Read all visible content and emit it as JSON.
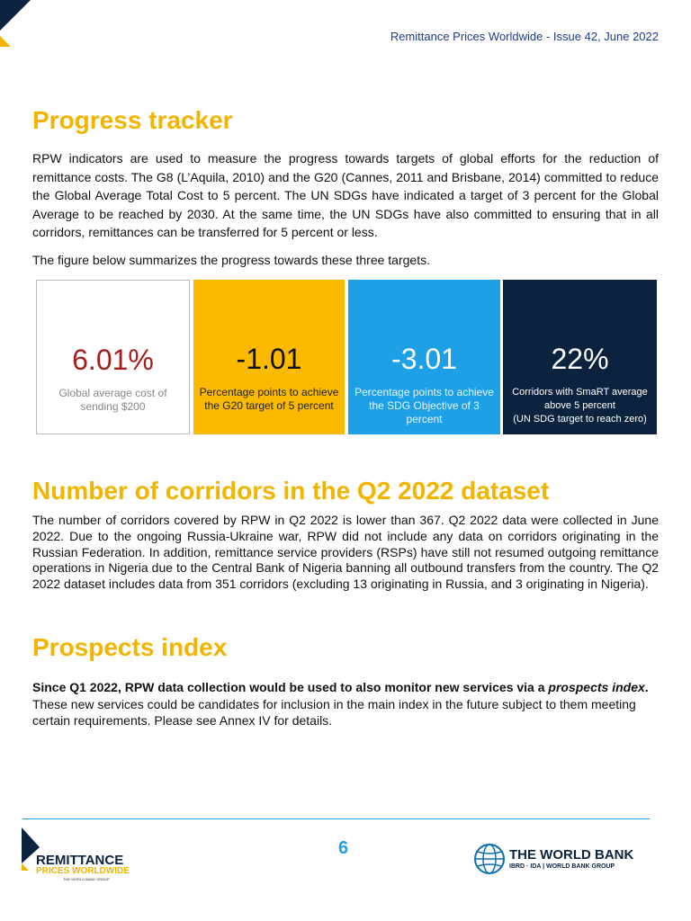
{
  "header": {
    "running_title": "Remittance Prices Worldwide - Issue 42, June 2022"
  },
  "sections": [
    {
      "heading": "Progress tracker",
      "paragraphs": [
        "RPW indicators are used to measure the progress towards targets of global efforts for the reduction of remittance costs. The G8 (L’Aquila, 2010) and the G20 (Cannes, 2011 and Brisbane, 2014) committed to reduce the Global Average Total Cost to 5 percent. The UN SDGs have indicated a target of 3 percent for the Global Average to be reached by 2030. At the same time, the UN SDGs have also committed to ensuring that in all corridors, remittances can be transferred for 5 percent or less.",
        "The figure below summarizes the progress towards these three targets."
      ]
    },
    {
      "heading": "Number of corridors in the Q2 2022 dataset",
      "paragraphs": [
        "The number of corridors covered by RPW in Q2 2022 is lower than 367. Q2 2022 data were collected in June 2022. Due to the ongoing Russia-Ukraine war, RPW did not include any data on corridors originating in the Russian Federation. In addition, remittance service providers (RSPs) have still not resumed outgoing remittance operations in Nigeria due to the Central Bank of Nigeria banning all outbound transfers from the country. The Q2 2022 dataset includes data from 351 corridors (excluding 13 originating in Russia, and 3 originating in Nigeria)."
      ]
    },
    {
      "heading": "Prospects index",
      "segments": [
        "Since Q1 2022, RPW data collection would be used to also monitor new services via a ",
        "prospects index",
        ".",
        " These new services could be candidates for inclusion in the main index in the future subject to them meeting certain requirements. Please see Annex IV for details."
      ]
    }
  ],
  "tracker": [
    {
      "value": "6.01%",
      "caption": "Global average cost of sending $200"
    },
    {
      "value": "-1.01",
      "caption": "Percentage points to achieve the G20 target of 5 percent"
    },
    {
      "value": "-3.01",
      "caption": "Percentage points to achieve the SDG Objective of 3 percent"
    },
    {
      "value": "22%",
      "caption_lines": [
        "Corridors with SmaRT average above 5 percent",
        "(UN SDG target to reach zero)"
      ]
    }
  ],
  "footer": {
    "page_number": "6",
    "left_logo": {
      "line1": "REMITTANCE",
      "line2": "PRICES WORLDWIDE",
      "line3": "THE WORLD BANK GROUP"
    },
    "right_logo": {
      "name": "THE WORLD BANK",
      "sub": "IBRD · IDA | WORLD BANK GROUP"
    }
  }
}
